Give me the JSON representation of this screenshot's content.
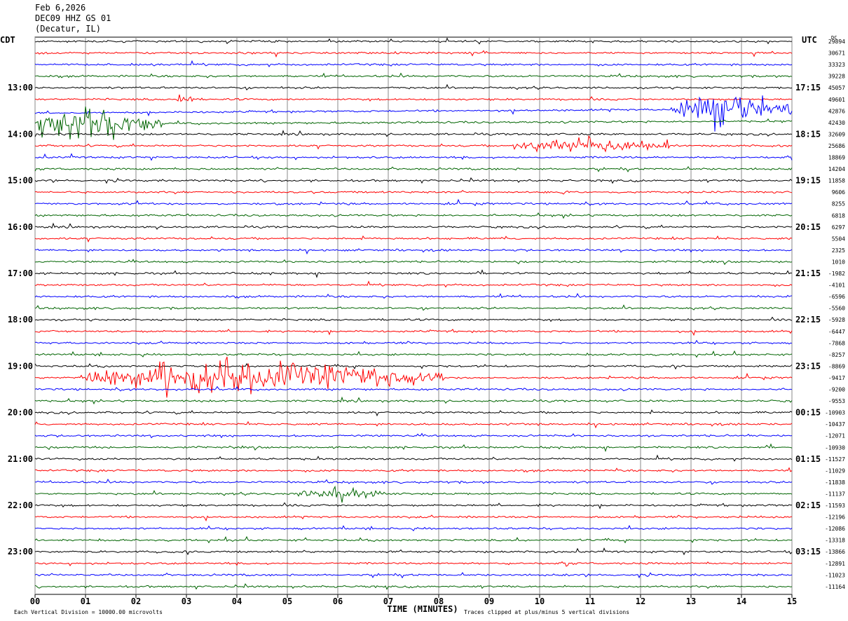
{
  "header": {
    "date": "Feb 6,2026",
    "station": "DEC09 HHZ GS 01",
    "location": "(Decatur, IL)"
  },
  "chart_data": {
    "type": "line",
    "title": "",
    "xlabel": "TIME (MINUTES)",
    "xlim": [
      0,
      15
    ],
    "x_ticks": [
      "00",
      "01",
      "02",
      "03",
      "04",
      "05",
      "06",
      "07",
      "08",
      "09",
      "10",
      "11",
      "12",
      "13",
      "14",
      "15"
    ],
    "left_axis_label": "CDT",
    "right_axis_label": "UTC",
    "right_top_label": "DC",
    "left_time_labels": [
      "13:00",
      "14:00",
      "15:00",
      "16:00",
      "17:00",
      "18:00",
      "19:00",
      "20:00",
      "21:00",
      "22:00",
      "23:00"
    ],
    "right_time_labels": [
      "17:15",
      "18:15",
      "19:15",
      "20:15",
      "21:15",
      "22:15",
      "23:15",
      "00:15",
      "01:15",
      "02:15",
      "03:15"
    ],
    "trace_colors": [
      "#000000",
      "#ff0000",
      "#0000ff",
      "#006400"
    ],
    "row_offsets": [
      "29894",
      "30671",
      "33323",
      "39228",
      "45057",
      "49601",
      "42876",
      "42430",
      "32609",
      "25686",
      "18869",
      "14204",
      "11858",
      "9606",
      "8255",
      "6818",
      "6297",
      "5504",
      "2325",
      "1010",
      "-1982",
      "-4101",
      "-6596",
      "-5560",
      "-5928",
      "-6447",
      "-7868",
      "-8257",
      "-8869",
      "-9417",
      "-9200",
      "-9553",
      "-10903",
      "-10437",
      "-12071",
      "-10930",
      "-11527",
      "-11029",
      "-11838",
      "-11137",
      "-11593",
      "-12196",
      "-12086",
      "-13318",
      "-13866",
      "-12891",
      "-11023",
      "-11164"
    ],
    "events": [
      {
        "row": 5,
        "start_min": 2.8,
        "end_min": 3.2,
        "amp": 0.6
      },
      {
        "row": 6,
        "start_min": 12.6,
        "end_min": 15.0,
        "amp": 1.9
      },
      {
        "row": 7,
        "start_min": 0.0,
        "end_min": 2.5,
        "amp": 2.0
      },
      {
        "row": 9,
        "start_min": 9.5,
        "end_min": 12.6,
        "amp": 0.9
      },
      {
        "row": 29,
        "start_min": 0.9,
        "end_min": 8.1,
        "amp": 1.8
      },
      {
        "row": 39,
        "start_min": 5.2,
        "end_min": 7.0,
        "amp": 0.5
      }
    ],
    "footer_left": "Each Vertical Division = 10000.00 microvolts",
    "footer_right": "Traces clipped at plus/minus 5 vertical divisions",
    "grid": "vertical-lines-each-minute"
  }
}
